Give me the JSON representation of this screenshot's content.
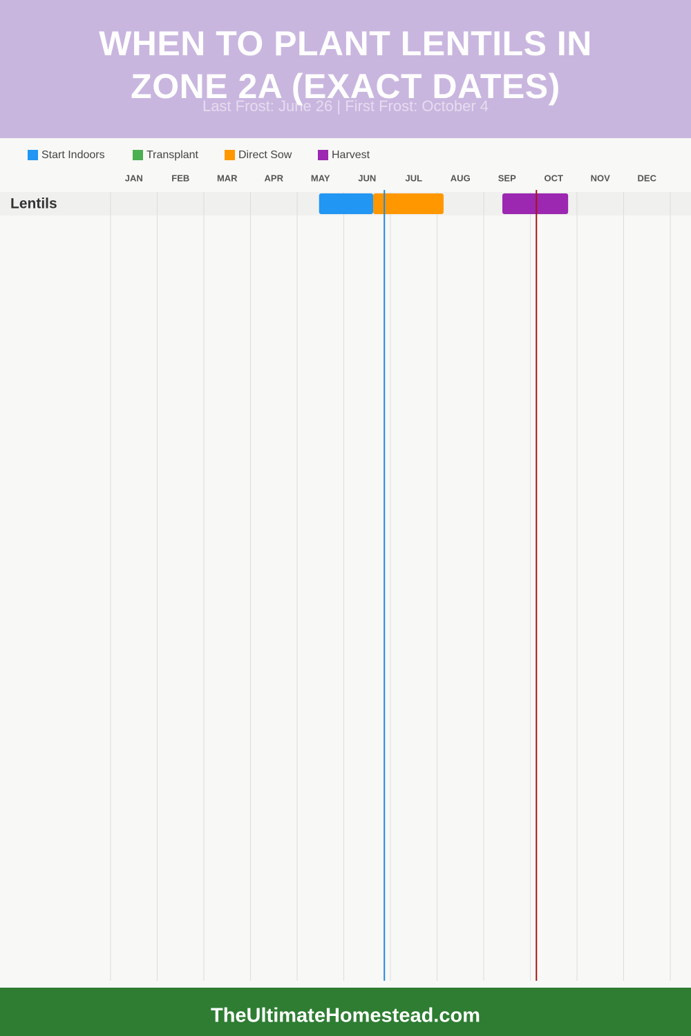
{
  "chart_data": {
    "type": "gantt",
    "title": "WHEN TO PLANT LENTILS IN ZONE 2A (EXACT DATES)",
    "subtitle": "Last Frost: June 26 | First Frost: October 4",
    "footer": "TheUltimateHomestead.com",
    "categories": [
      "Lentils"
    ],
    "xlim": [
      0,
      12
    ],
    "xticks": [
      {
        "value": 0.5,
        "label": "JAN"
      },
      {
        "value": 1.5,
        "label": "FEB"
      },
      {
        "value": 2.5,
        "label": "MAR"
      },
      {
        "value": 3.5,
        "label": "APR"
      },
      {
        "value": 4.5,
        "label": "MAY"
      },
      {
        "value": 5.5,
        "label": "JUN"
      },
      {
        "value": 6.5,
        "label": "JUL"
      },
      {
        "value": 7.5,
        "label": "AUG"
      },
      {
        "value": 8.5,
        "label": "SEP"
      },
      {
        "value": 9.5,
        "label": "OCT"
      },
      {
        "value": 10.5,
        "label": "NOV"
      },
      {
        "value": 11.5,
        "label": "DEC"
      }
    ],
    "grid": true,
    "series": [
      {
        "name": "Start Indoors",
        "color": "#2196f3",
        "values": [
          [
            4.47,
            5.63
          ]
        ]
      },
      {
        "name": "Transplant",
        "color": "#4caf50",
        "values": [
          null
        ]
      },
      {
        "name": "Direct Sow",
        "color": "#ff9800",
        "values": [
          [
            5.63,
            7.14
          ]
        ]
      },
      {
        "name": "Harvest",
        "color": "#9c27b0",
        "values": [
          [
            8.4,
            9.81
          ]
        ]
      }
    ],
    "frost_lines": [
      {
        "value": 5.87,
        "color": "#1e88e5"
      },
      {
        "value": 9.13,
        "color": "#a31515"
      }
    ]
  }
}
